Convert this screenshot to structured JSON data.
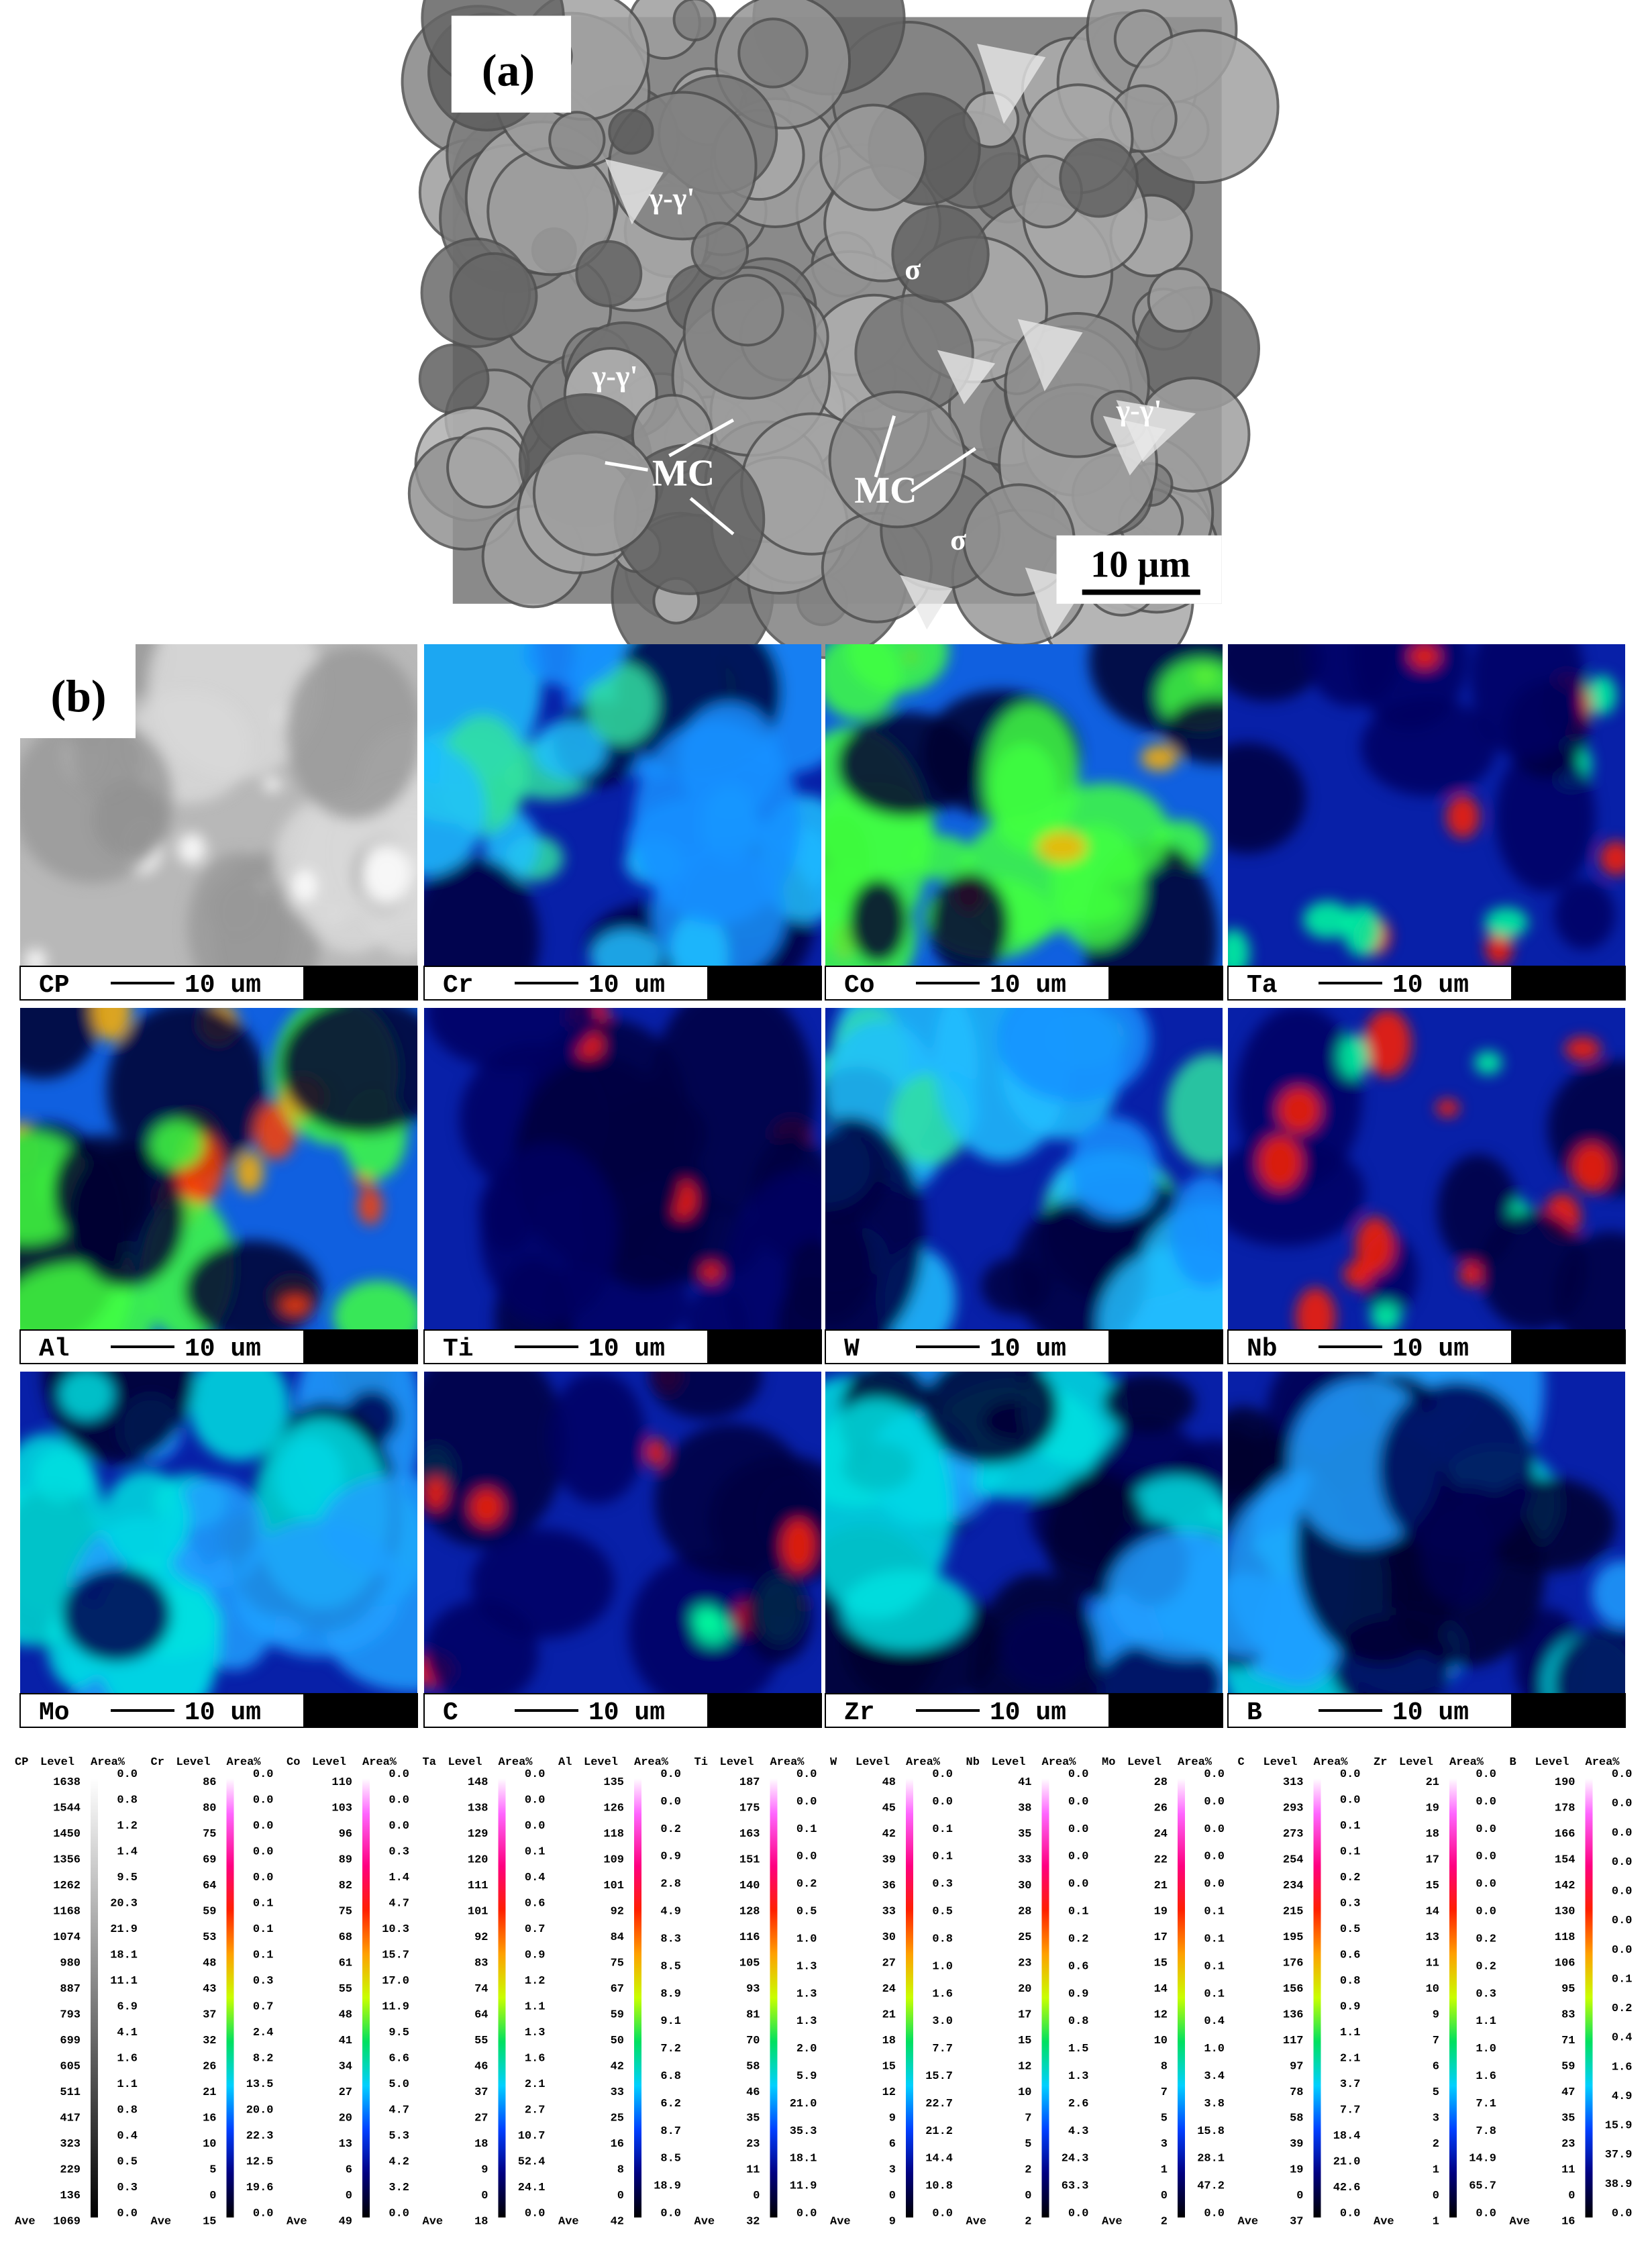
{
  "panel_a": {
    "label": "(a)",
    "phase_labels": [
      "γ-γ'",
      "γ-γ'",
      "γ-γ'",
      "σ",
      "σ",
      "MC",
      "MC"
    ],
    "scale_bar": "10 µm"
  },
  "panel_b": {
    "label": "(b)",
    "maps": [
      {
        "element": "CP",
        "scale_bar": "10 um"
      },
      {
        "element": "Cr",
        "scale_bar": "10 um"
      },
      {
        "element": "Co",
        "scale_bar": "10 um"
      },
      {
        "element": "Ta",
        "scale_bar": "10 um"
      },
      {
        "element": "Al",
        "scale_bar": "10 um"
      },
      {
        "element": "Ti",
        "scale_bar": "10 um"
      },
      {
        "element": "W",
        "scale_bar": "10 um"
      },
      {
        "element": "Nb",
        "scale_bar": "10 um"
      },
      {
        "element": "Mo",
        "scale_bar": "10 um"
      },
      {
        "element": "C",
        "scale_bar": "10 um"
      },
      {
        "element": "Zr",
        "scale_bar": "10 um"
      },
      {
        "element": "B",
        "scale_bar": "10 um"
      }
    ],
    "legends": [
      {
        "element": "CP",
        "level_header": "Level",
        "area_header": "Area%",
        "levels": [
          1638,
          1544,
          1450,
          1356,
          1262,
          1168,
          1074,
          980,
          887,
          793,
          699,
          605,
          511,
          417,
          323,
          229,
          136
        ],
        "ave_label": "Ave",
        "ave": 1069,
        "areas": [
          "0.0",
          "0.8",
          "1.2",
          "1.4",
          "9.5",
          "20.3",
          "21.9",
          "18.1",
          "11.1",
          "6.9",
          "4.1",
          "1.6",
          "1.1",
          "0.8",
          "0.4",
          "0.5",
          "0.3",
          "0.0"
        ]
      },
      {
        "element": "Cr",
        "level_header": "Level",
        "area_header": "Area%",
        "levels": [
          86,
          80,
          75,
          69,
          64,
          59,
          53,
          48,
          43,
          37,
          32,
          26,
          21,
          16,
          10,
          5,
          0
        ],
        "ave_label": "Ave",
        "ave": 15,
        "areas": [
          "0.0",
          "0.0",
          "0.0",
          "0.0",
          "0.0",
          "0.1",
          "0.1",
          "0.1",
          "0.3",
          "0.7",
          "2.4",
          "8.2",
          "13.5",
          "20.0",
          "22.3",
          "12.5",
          "19.6",
          "0.0"
        ]
      },
      {
        "element": "Co",
        "level_header": "Level",
        "area_header": "Area%",
        "levels": [
          110,
          103,
          96,
          89,
          82,
          75,
          68,
          61,
          55,
          48,
          41,
          34,
          27,
          20,
          13,
          6,
          0
        ],
        "ave_label": "Ave",
        "ave": 49,
        "areas": [
          "0.0",
          "0.0",
          "0.0",
          "0.3",
          "1.4",
          "4.7",
          "10.3",
          "15.7",
          "17.0",
          "11.9",
          "9.5",
          "6.6",
          "5.0",
          "4.7",
          "5.3",
          "4.2",
          "3.2",
          "0.0"
        ]
      },
      {
        "element": "Ta",
        "level_header": "Level",
        "area_header": "Area%",
        "levels": [
          148,
          138,
          129,
          120,
          111,
          101,
          92,
          83,
          74,
          64,
          55,
          46,
          37,
          27,
          18,
          9,
          0
        ],
        "ave_label": "Ave",
        "ave": 18,
        "areas": [
          "0.0",
          "0.0",
          "0.0",
          "0.1",
          "0.4",
          "0.6",
          "0.7",
          "0.9",
          "1.2",
          "1.1",
          "1.3",
          "1.6",
          "2.1",
          "2.7",
          "10.7",
          "52.4",
          "24.1",
          "0.0"
        ]
      },
      {
        "element": "Al",
        "level_header": "Level",
        "area_header": "Area%",
        "levels": [
          135,
          126,
          118,
          109,
          101,
          92,
          84,
          75,
          67,
          59,
          50,
          42,
          33,
          25,
          16,
          8,
          0
        ],
        "ave_label": "Ave",
        "ave": 42,
        "areas": [
          "0.0",
          "0.0",
          "0.2",
          "0.9",
          "2.8",
          "4.9",
          "8.3",
          "8.5",
          "8.9",
          "9.1",
          "7.2",
          "6.8",
          "6.2",
          "8.7",
          "8.5",
          "18.9",
          "0.0"
        ]
      },
      {
        "element": "Ti",
        "level_header": "Level",
        "area_header": "Area%",
        "levels": [
          187,
          175,
          163,
          151,
          140,
          128,
          116,
          105,
          93,
          81,
          70,
          58,
          46,
          35,
          23,
          11,
          0
        ],
        "ave_label": "Ave",
        "ave": 32,
        "areas": [
          "0.0",
          "0.0",
          "0.1",
          "0.0",
          "0.2",
          "0.5",
          "1.0",
          "1.3",
          "1.3",
          "1.3",
          "2.0",
          "5.9",
          "21.0",
          "35.3",
          "18.1",
          "11.9",
          "0.0"
        ]
      },
      {
        "element": "W",
        "level_header": "Level",
        "area_header": "Area%",
        "levels": [
          48,
          45,
          42,
          39,
          36,
          33,
          30,
          27,
          24,
          21,
          18,
          15,
          12,
          9,
          6,
          3,
          0
        ],
        "ave_label": "Ave",
        "ave": 9,
        "areas": [
          "0.0",
          "0.0",
          "0.1",
          "0.1",
          "0.3",
          "0.5",
          "0.8",
          "1.0",
          "1.6",
          "3.0",
          "7.7",
          "15.7",
          "22.7",
          "21.2",
          "14.4",
          "10.8",
          "0.0"
        ]
      },
      {
        "element": "Nb",
        "level_header": "Level",
        "area_header": "Area%",
        "levels": [
          41,
          38,
          35,
          33,
          30,
          28,
          25,
          23,
          20,
          17,
          15,
          12,
          10,
          7,
          5,
          2,
          0
        ],
        "ave_label": "Ave",
        "ave": 2,
        "areas": [
          "0.0",
          "0.0",
          "0.0",
          "0.0",
          "0.0",
          "0.1",
          "0.2",
          "0.6",
          "0.9",
          "0.8",
          "1.5",
          "1.3",
          "2.6",
          "4.3",
          "24.3",
          "63.3",
          "0.0"
        ]
      },
      {
        "element": "Mo",
        "level_header": "Level",
        "area_header": "Area%",
        "levels": [
          28,
          26,
          24,
          22,
          21,
          19,
          17,
          15,
          14,
          12,
          10,
          8,
          7,
          5,
          3,
          1,
          0
        ],
        "ave_label": "Ave",
        "ave": 2,
        "areas": [
          "0.0",
          "0.0",
          "0.0",
          "0.0",
          "0.0",
          "0.1",
          "0.1",
          "0.1",
          "0.1",
          "0.4",
          "1.0",
          "3.4",
          "3.8",
          "15.8",
          "28.1",
          "47.2",
          "0.0"
        ]
      },
      {
        "element": "C",
        "level_header": "Level",
        "area_header": "Area%",
        "levels": [
          313,
          293,
          273,
          254,
          234,
          215,
          195,
          176,
          156,
          136,
          117,
          97,
          78,
          58,
          39,
          19,
          0
        ],
        "ave_label": "Ave",
        "ave": 37,
        "areas": [
          "0.0",
          "0.0",
          "0.1",
          "0.1",
          "0.2",
          "0.3",
          "0.5",
          "0.6",
          "0.8",
          "0.9",
          "1.1",
          "2.1",
          "3.7",
          "7.7",
          "18.4",
          "21.0",
          "42.6",
          "0.0"
        ]
      },
      {
        "element": "Zr",
        "level_header": "Level",
        "area_header": "Area%",
        "levels": [
          21,
          19,
          18,
          17,
          15,
          14,
          13,
          11,
          10,
          9,
          7,
          6,
          5,
          3,
          2,
          1,
          0
        ],
        "ave_label": "Ave",
        "ave": 1,
        "areas": [
          "0.0",
          "0.0",
          "0.0",
          "0.0",
          "0.0",
          "0.0",
          "0.2",
          "0.2",
          "0.3",
          "1.1",
          "1.0",
          "1.6",
          "7.1",
          "7.8",
          "14.9",
          "65.7",
          "0.0"
        ]
      },
      {
        "element": "B",
        "level_header": "Level",
        "area_header": "Area%",
        "levels": [
          190,
          178,
          166,
          154,
          142,
          130,
          118,
          106,
          95,
          83,
          71,
          59,
          47,
          35,
          23,
          11,
          0
        ],
        "ave_label": "Ave",
        "ave": 16,
        "areas": [
          "0.0",
          "0.0",
          "0.0",
          "0.0",
          "0.0",
          "0.0",
          "0.0",
          "0.1",
          "0.2",
          "0.4",
          "1.6",
          "4.9",
          "15.9",
          "37.9",
          "38.9",
          "0.0"
        ]
      }
    ]
  }
}
